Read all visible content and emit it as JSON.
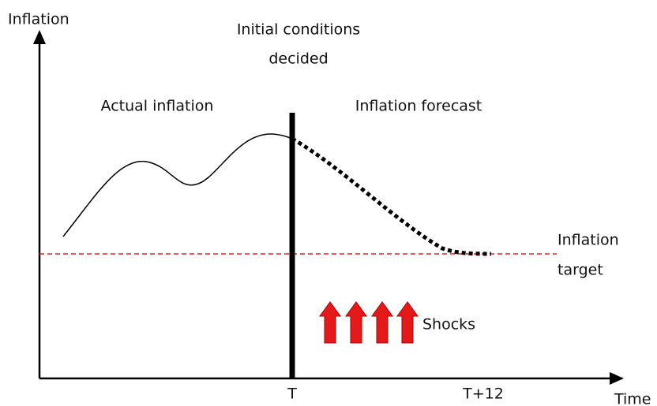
{
  "axes": {
    "y_label": "Inflation",
    "x_label": "Time",
    "x_ticks": [
      "T",
      "T+12"
    ]
  },
  "labels": {
    "initial_conditions": [
      "Initial conditions",
      "decided"
    ],
    "actual": "Actual inflation",
    "forecast": "Inflation forecast",
    "target": [
      "Inflation",
      "target"
    ],
    "shocks": "Shocks"
  }
}
